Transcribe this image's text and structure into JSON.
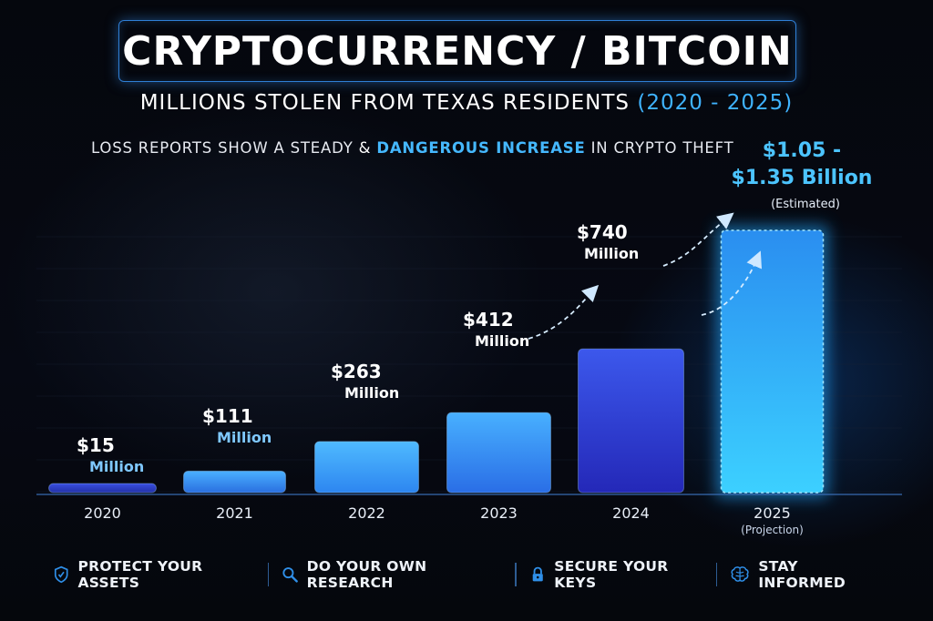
{
  "header": {
    "title": "CRYPTOCURRENCY / BITCOIN",
    "subtitle_main": "MILLIONS STOLEN FROM TEXAS RESIDENTS",
    "subtitle_years": "(2020 - 2025)",
    "tagline_start": "LOSS REPORTS SHOW A STEADY",
    "tagline_amp": "&",
    "tagline_highlight": "DANGEROUS INCREASE",
    "tagline_end": "IN CRYPTO THEFT"
  },
  "chart_data": {
    "type": "bar",
    "title": "CRYPTOCURRENCY / BITCOIN",
    "subtitle": "MILLIONS STOLEN FROM TEXAS RESIDENTS (2020 - 2025)",
    "categories": [
      "2020",
      "2021",
      "2022",
      "2023",
      "2024",
      "2025"
    ],
    "category_notes": [
      "",
      "",
      "",
      "",
      "",
      "(Projection)"
    ],
    "values": [
      15,
      111,
      263,
      412,
      740,
      1350
    ],
    "projection_range": [
      1050,
      1350
    ],
    "unit": "Million USD",
    "ylim": [
      0,
      1350
    ],
    "value_labels": [
      [
        "$15",
        "Million"
      ],
      [
        "$111",
        "Million"
      ],
      [
        "$263",
        "Million"
      ],
      [
        "$412",
        "Million"
      ],
      [
        "$740",
        "Million"
      ],
      [
        "$1.05 -",
        "$1.35 Billion",
        "(Estimated)"
      ]
    ],
    "colors": [
      "#2f3fc0",
      "#2f8ff0",
      "#38a6f6",
      "#3a95f0",
      "#3346d8",
      "#28b8ff"
    ],
    "xlabel": "",
    "ylabel": "",
    "grid": false,
    "legend": "none"
  },
  "footer": {
    "items": [
      {
        "label": "PROTECT YOUR ASSETS",
        "icon": "shield-icon"
      },
      {
        "label": "DO YOUR OWN RESEARCH",
        "icon": "magnifier-icon"
      },
      {
        "label": "SECURE YOUR KEYS",
        "icon": "lock-icon"
      },
      {
        "label": "STAY INFORMED",
        "icon": "brain-icon"
      }
    ],
    "icon_color": "#2f8fe8"
  }
}
